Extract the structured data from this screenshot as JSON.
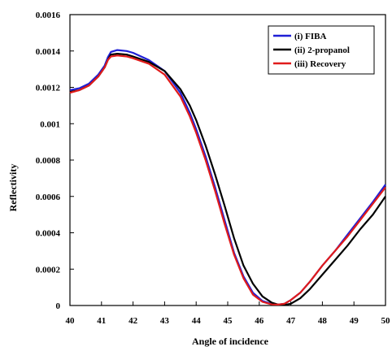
{
  "chart_data": {
    "type": "line",
    "title": "",
    "xlabel": "Angle of incidence",
    "ylabel": "Reflectivity",
    "xlim": [
      40,
      50
    ],
    "ylim": [
      0,
      0.0016
    ],
    "x_ticks": [
      "40",
      "41",
      "42",
      "43",
      "44",
      "45",
      "46",
      "47",
      "48",
      "49",
      "50"
    ],
    "y_ticks": [
      "0",
      "0.0002",
      "0.0004",
      "0.0006",
      "0.0008",
      "0.001",
      "0.0012",
      "0.0014",
      "0.0016"
    ],
    "grid": false,
    "legend_position": "top-right",
    "series": [
      {
        "name": "(i) FIBA",
        "color": "#1f1fd6",
        "points": [
          [
            40.0,
            0.001185
          ],
          [
            40.3,
            0.001195
          ],
          [
            40.6,
            0.00122
          ],
          [
            40.9,
            0.00127
          ],
          [
            41.1,
            0.00132
          ],
          [
            41.2,
            0.001365
          ],
          [
            41.3,
            0.001395
          ],
          [
            41.5,
            0.001405
          ],
          [
            41.8,
            0.0014
          ],
          [
            42.0,
            0.00139
          ],
          [
            42.5,
            0.00135
          ],
          [
            43.0,
            0.00129
          ],
          [
            43.5,
            0.00117
          ],
          [
            43.8,
            0.00106
          ],
          [
            44.0,
            0.00097
          ],
          [
            44.3,
            0.00082
          ],
          [
            44.6,
            0.00065
          ],
          [
            44.9,
            0.00047
          ],
          [
            45.2,
            0.00029
          ],
          [
            45.5,
            0.00016
          ],
          [
            45.8,
            7e-05
          ],
          [
            46.1,
            2.5e-05
          ],
          [
            46.4,
            8e-06
          ],
          [
            46.6,
            5e-06
          ],
          [
            46.8,
            1e-05
          ],
          [
            47.0,
            3e-05
          ],
          [
            47.3,
            7e-05
          ],
          [
            47.6,
            0.00013
          ],
          [
            48.0,
            0.00022
          ],
          [
            48.4,
            0.0003
          ],
          [
            48.8,
            0.00039
          ],
          [
            49.2,
            0.00048
          ],
          [
            49.6,
            0.00057
          ],
          [
            50.0,
            0.000665
          ]
        ]
      },
      {
        "name": "(ii) 2-propanol",
        "color": "#000000",
        "points": [
          [
            40.0,
            0.001175
          ],
          [
            40.3,
            0.001185
          ],
          [
            40.6,
            0.00121
          ],
          [
            40.9,
            0.00126
          ],
          [
            41.1,
            0.00131
          ],
          [
            41.2,
            0.00135
          ],
          [
            41.3,
            0.00138
          ],
          [
            41.5,
            0.001385
          ],
          [
            41.8,
            0.00138
          ],
          [
            42.0,
            0.00137
          ],
          [
            42.5,
            0.00134
          ],
          [
            43.0,
            0.00129
          ],
          [
            43.5,
            0.00119
          ],
          [
            43.8,
            0.0011
          ],
          [
            44.0,
            0.00102
          ],
          [
            44.3,
            0.00088
          ],
          [
            44.6,
            0.00072
          ],
          [
            44.9,
            0.00055
          ],
          [
            45.2,
            0.00037
          ],
          [
            45.5,
            0.00022
          ],
          [
            45.8,
            0.00012
          ],
          [
            46.1,
            5e-05
          ],
          [
            46.4,
            1.5e-05
          ],
          [
            46.6,
            5e-06
          ],
          [
            46.8,
            3e-06
          ],
          [
            47.0,
            1e-05
          ],
          [
            47.3,
            4e-05
          ],
          [
            47.6,
            9e-05
          ],
          [
            48.0,
            0.00017
          ],
          [
            48.4,
            0.00025
          ],
          [
            48.8,
            0.00033
          ],
          [
            49.2,
            0.00042
          ],
          [
            49.6,
            0.0005
          ],
          [
            50.0,
            0.0006
          ]
        ]
      },
      {
        "name": "(iii) Recovery",
        "color": "#e01b1b",
        "points": [
          [
            40.0,
            0.00117
          ],
          [
            40.3,
            0.001185
          ],
          [
            40.6,
            0.00121
          ],
          [
            40.9,
            0.00126
          ],
          [
            41.1,
            0.00131
          ],
          [
            41.2,
            0.00135
          ],
          [
            41.3,
            0.00137
          ],
          [
            41.5,
            0.001375
          ],
          [
            41.8,
            0.00137
          ],
          [
            42.0,
            0.00136
          ],
          [
            42.5,
            0.00133
          ],
          [
            43.0,
            0.00127
          ],
          [
            43.5,
            0.00115
          ],
          [
            43.8,
            0.00104
          ],
          [
            44.0,
            0.00095
          ],
          [
            44.3,
            0.0008
          ],
          [
            44.6,
            0.00063
          ],
          [
            44.9,
            0.00045
          ],
          [
            45.2,
            0.00028
          ],
          [
            45.5,
            0.00015
          ],
          [
            45.8,
            6e-05
          ],
          [
            46.1,
            2e-05
          ],
          [
            46.4,
            6e-06
          ],
          [
            46.6,
            5e-06
          ],
          [
            46.8,
            1e-05
          ],
          [
            47.0,
            3e-05
          ],
          [
            47.3,
            7e-05
          ],
          [
            47.6,
            0.00013
          ],
          [
            48.0,
            0.00022
          ],
          [
            48.4,
            0.0003
          ],
          [
            48.8,
            0.00038
          ],
          [
            49.2,
            0.00047
          ],
          [
            49.6,
            0.00056
          ],
          [
            50.0,
            0.00065
          ]
        ]
      }
    ]
  }
}
